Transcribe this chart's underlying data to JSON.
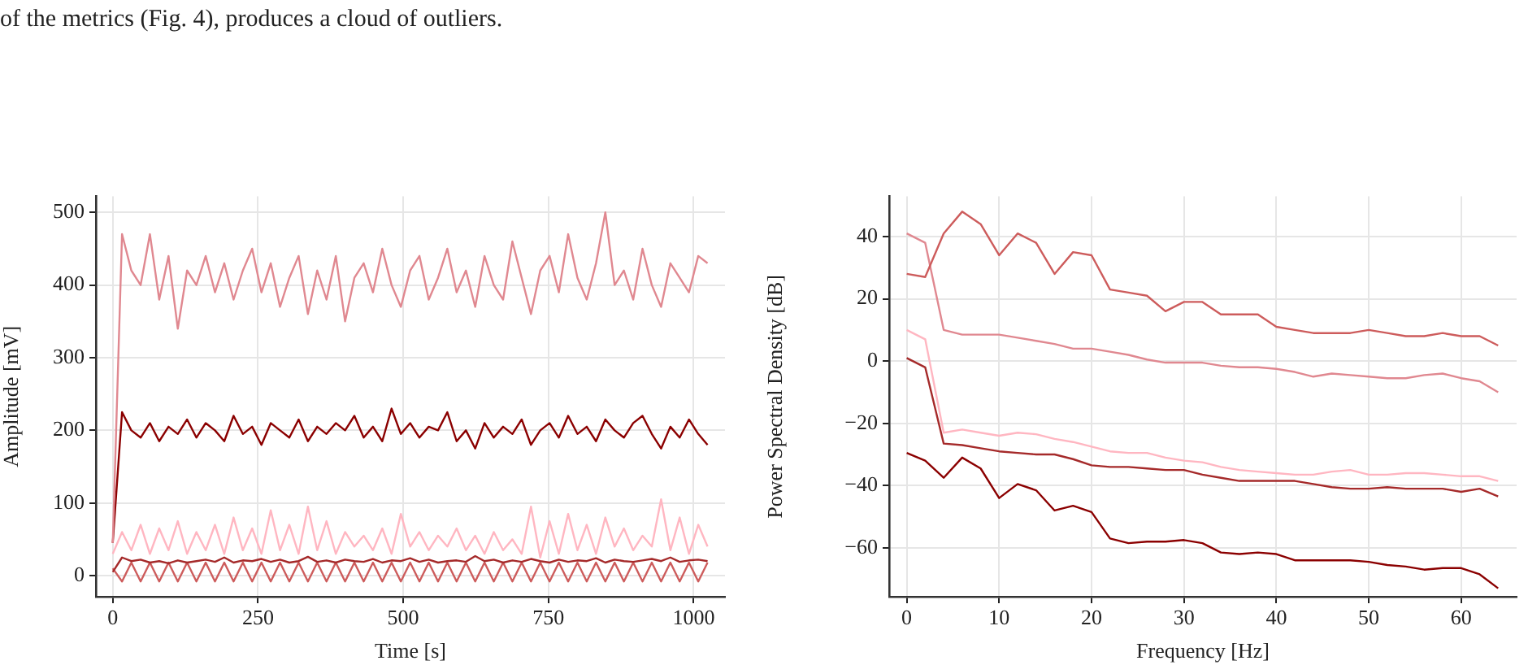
{
  "chart_data": [
    {
      "type": "line",
      "xlabel": "Time [s]",
      "ylabel": "Amplitude [mV]",
      "annotations": [
        "of the metrics (Fig. 4), produces a cloud of outliers."
      ],
      "xlim": [
        -29,
        1054
      ],
      "ylim": [
        -29,
        522
      ],
      "xticks": [
        0,
        250,
        500,
        750,
        1000
      ],
      "yticks": [
        0,
        100,
        200,
        300,
        400,
        500
      ],
      "grid": true,
      "marker": "none",
      "legend": false,
      "x": [
        0,
        16,
        32,
        48,
        64,
        80,
        96,
        112,
        128,
        144,
        160,
        176,
        192,
        208,
        224,
        240,
        256,
        272,
        288,
        304,
        320,
        336,
        352,
        368,
        384,
        400,
        416,
        432,
        448,
        464,
        480,
        496,
        512,
        528,
        544,
        560,
        576,
        592,
        608,
        624,
        640,
        656,
        672,
        688,
        704,
        720,
        736,
        752,
        768,
        784,
        800,
        816,
        832,
        848,
        864,
        880,
        896,
        912,
        928,
        944,
        960,
        976,
        992,
        1008,
        1024
      ],
      "series": [
        {
          "color": "#e08890",
          "values": [
            45,
            470,
            420,
            400,
            470,
            380,
            440,
            340,
            420,
            400,
            440,
            390,
            430,
            380,
            420,
            450,
            390,
            430,
            370,
            410,
            440,
            360,
            420,
            380,
            440,
            350,
            410,
            430,
            390,
            450,
            400,
            370,
            420,
            440,
            380,
            410,
            450,
            390,
            420,
            370,
            440,
            400,
            380,
            460,
            410,
            360,
            420,
            440,
            390,
            470,
            410,
            380,
            430,
            500,
            400,
            420,
            380,
            450,
            400,
            370,
            430,
            410,
            390,
            440,
            430
          ]
        },
        {
          "color": "#8b0000",
          "values": [
            45,
            225,
            200,
            190,
            210,
            185,
            205,
            195,
            215,
            190,
            210,
            200,
            185,
            220,
            195,
            205,
            180,
            210,
            200,
            190,
            215,
            185,
            205,
            195,
            210,
            200,
            220,
            190,
            205,
            185,
            230,
            195,
            210,
            190,
            205,
            200,
            225,
            185,
            200,
            175,
            210,
            190,
            205,
            195,
            215,
            180,
            200,
            210,
            190,
            220,
            195,
            205,
            185,
            215,
            200,
            190,
            210,
            220,
            195,
            175,
            205,
            190,
            215,
            195,
            180
          ]
        },
        {
          "color": "#ffb6c1",
          "values": [
            30,
            60,
            35,
            70,
            30,
            65,
            35,
            75,
            30,
            60,
            35,
            70,
            30,
            80,
            35,
            65,
            30,
            90,
            35,
            70,
            30,
            95,
            35,
            75,
            30,
            60,
            40,
            55,
            35,
            65,
            30,
            85,
            40,
            60,
            35,
            55,
            40,
            65,
            35,
            55,
            30,
            60,
            35,
            50,
            30,
            95,
            25,
            75,
            30,
            85,
            35,
            70,
            30,
            80,
            40,
            65,
            35,
            55,
            40,
            105,
            35,
            80,
            30,
            70,
            40
          ]
        },
        {
          "color": "#a52a2a",
          "values": [
            5,
            25,
            20,
            22,
            18,
            20,
            17,
            21,
            18,
            20,
            22,
            19,
            25,
            18,
            21,
            20,
            23,
            19,
            22,
            18,
            20,
            26,
            19,
            21,
            18,
            22,
            20,
            19,
            23,
            18,
            21,
            20,
            24,
            19,
            22,
            18,
            20,
            21,
            19,
            27,
            20,
            22,
            18,
            21,
            19,
            23,
            20,
            18,
            22,
            19,
            21,
            20,
            24,
            18,
            22,
            20,
            19,
            21,
            23,
            20,
            25,
            19,
            21,
            22,
            20
          ]
        },
        {
          "color": "#cd5c5c",
          "values": [
            10,
            -8,
            18,
            -8,
            18,
            -8,
            18,
            -8,
            18,
            -8,
            18,
            -8,
            18,
            -8,
            18,
            -8,
            18,
            -8,
            18,
            -8,
            18,
            -8,
            18,
            -8,
            18,
            -8,
            18,
            -8,
            18,
            -8,
            18,
            -8,
            18,
            -8,
            18,
            -8,
            18,
            -8,
            18,
            -8,
            18,
            -8,
            18,
            -8,
            18,
            -8,
            18,
            -8,
            18,
            -8,
            18,
            -8,
            18,
            -8,
            18,
            -8,
            18,
            -8,
            18,
            -8,
            18,
            -8,
            18,
            -8,
            18
          ]
        }
      ]
    },
    {
      "type": "line",
      "xlabel": "Frequency [Hz]",
      "ylabel": "Power Spectral Density [dB]",
      "xlim": [
        -1.9,
        66
      ],
      "ylim": [
        -75.7,
        52.9
      ],
      "xticks": [
        0,
        10,
        20,
        30,
        40,
        50,
        60
      ],
      "yticks": [
        -60,
        -40,
        -20,
        0,
        20,
        40
      ],
      "grid": true,
      "marker": "none",
      "legend": false,
      "x": [
        0,
        2,
        4,
        6,
        8,
        10,
        12,
        14,
        16,
        18,
        20,
        22,
        24,
        26,
        28,
        30,
        32,
        34,
        36,
        38,
        40,
        42,
        44,
        46,
        48,
        50,
        52,
        54,
        56,
        58,
        60,
        62,
        64
      ],
      "series": [
        {
          "color": "#cd5c5c",
          "values": [
            28,
            27,
            41,
            48,
            44,
            34,
            41,
            38,
            28,
            35,
            34,
            23,
            22,
            21,
            16,
            19,
            19,
            15,
            15,
            15,
            11,
            10,
            9,
            9,
            9,
            10,
            9,
            8,
            8,
            9,
            8,
            8,
            5
          ]
        },
        {
          "color": "#e08890",
          "values": [
            41,
            38,
            10,
            8.5,
            8.5,
            8.5,
            7.5,
            6.5,
            5.5,
            4,
            4,
            3,
            2,
            0.5,
            -0.5,
            -0.5,
            -0.5,
            -1.5,
            -2,
            -2,
            -2.5,
            -3.5,
            -5,
            -4,
            -4.5,
            -5,
            -5.5,
            -5.5,
            -4.5,
            -4,
            -5.5,
            -6.5,
            -10
          ]
        },
        {
          "color": "#ffb6c1",
          "values": [
            10,
            7,
            -23,
            -22,
            -23,
            -24,
            -23,
            -23.5,
            -25,
            -26,
            -27.5,
            -29,
            -29.5,
            -29.5,
            -31,
            -32,
            -32.5,
            -34,
            -35,
            -35.5,
            -36,
            -36.5,
            -36.5,
            -35.5,
            -35,
            -36.5,
            -36.5,
            -36,
            -36,
            -36.5,
            -37,
            -37,
            -38.5
          ]
        },
        {
          "color": "#a52a2a",
          "values": [
            1,
            -2,
            -26.5,
            -27,
            -28,
            -29,
            -29.5,
            -30,
            -30,
            -31.5,
            -33.5,
            -34,
            -34,
            -34.5,
            -35,
            -35,
            -36.5,
            -37.5,
            -38.5,
            -38.5,
            -38.5,
            -38.5,
            -39.5,
            -40.5,
            -41,
            -41,
            -40.5,
            -41,
            -41,
            -41,
            -42,
            -41,
            -43.5
          ]
        },
        {
          "color": "#8b0000",
          "values": [
            -29.5,
            -32,
            -37.5,
            -31,
            -34.5,
            -44,
            -39.5,
            -41.5,
            -48,
            -46.5,
            -48.5,
            -57,
            -58.5,
            -58,
            -58,
            -57.5,
            -58.5,
            -61.5,
            -62,
            -61.5,
            -62,
            -64,
            -64,
            -64,
            -64,
            -64.5,
            -65.5,
            -66,
            -67,
            -66.5,
            -66.5,
            -68.5,
            -73
          ]
        }
      ]
    }
  ]
}
